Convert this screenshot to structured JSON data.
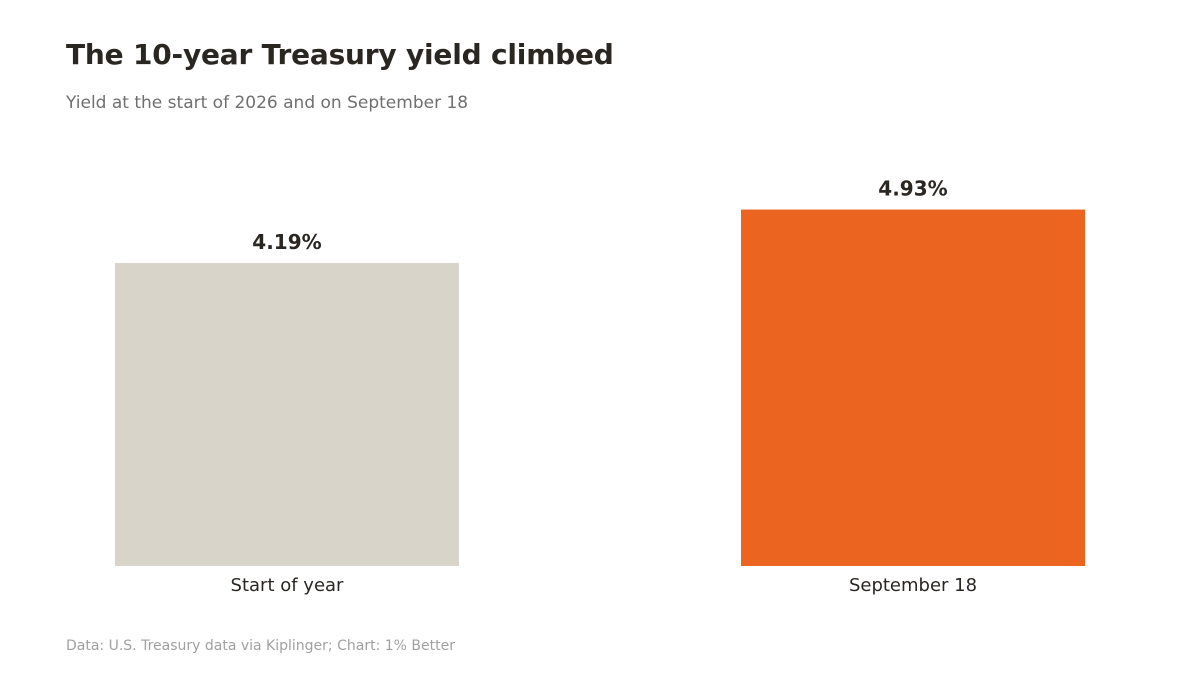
{
  "chart_data": {
    "type": "bar",
    "title": "The 10-year Treasury yield climbed",
    "subtitle": "Yield at the start of 2026 and on September 18",
    "categories": [
      "Start of year",
      "September 18"
    ],
    "values": [
      4.19,
      4.93
    ],
    "value_labels": [
      "4.19%",
      "4.93%"
    ],
    "colors": [
      "#d9d4ca",
      "#ec6520"
    ],
    "unit": "%",
    "xlabel": "",
    "ylabel": "",
    "grid": false,
    "legend": "none",
    "source": "Data: U.S. Treasury data via Kiplinger; Chart: 1% Better"
  }
}
